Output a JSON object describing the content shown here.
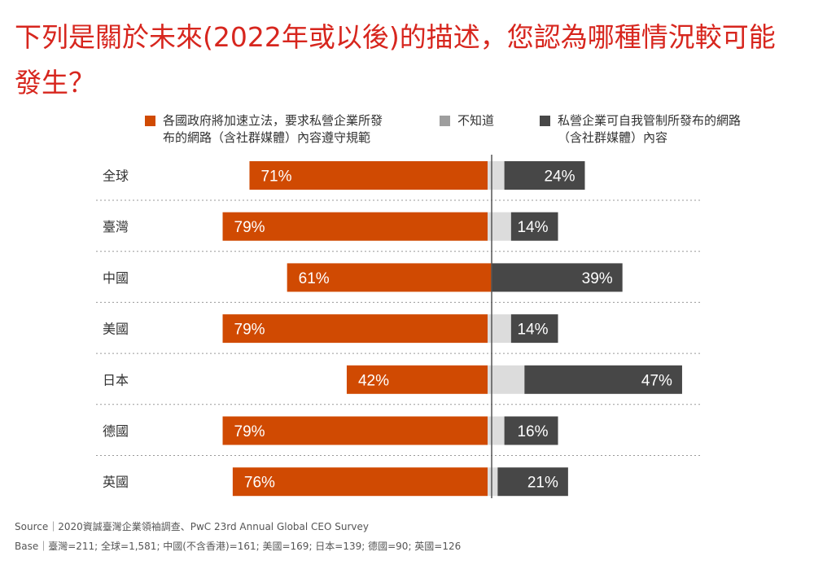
{
  "title": "下列是關於未來(2022年或以後)的描述，您認為哪種情況較可能發生？",
  "legend": [
    {
      "label": "各國政府將加速立法，要求私營企業所發\n布的網路（含社群媒體）內容遵守規範",
      "color": "#d04a02"
    },
    {
      "label": "不知道",
      "color": "#9e9e9e"
    },
    {
      "label": "私營企業可自我管制所發布的網路\n（含社群媒體）內容",
      "color": "#474747"
    }
  ],
  "chart_data": {
    "type": "bar",
    "orientation": "horizontal-diverging",
    "categories": [
      "全球",
      "臺灣",
      "中國",
      "美國",
      "日本",
      "德國",
      "英國"
    ],
    "series": [
      {
        "name": "各國政府將加速立法，要求私營企業所發布的網路（含社群媒體）內容遵守規範",
        "values": [
          71,
          79,
          61,
          79,
          42,
          79,
          76
        ],
        "color": "#d04a02"
      },
      {
        "name": "不知道",
        "values": [
          5,
          7,
          0,
          7,
          11,
          5,
          3
        ],
        "color": "#dcdcdc"
      },
      {
        "name": "私營企業可自我管制所發布的網路（含社群媒體）內容",
        "values": [
          24,
          14,
          39,
          14,
          47,
          16,
          21
        ],
        "color": "#474747"
      }
    ],
    "value_labels": {
      "left": [
        "71%",
        "79%",
        "61%",
        "79%",
        "42%",
        "79%",
        "76%"
      ],
      "right": [
        "24%",
        "14%",
        "39%",
        "14%",
        "47%",
        "16%",
        "21%"
      ]
    },
    "label_color": "#ffffff",
    "divider_color": "#555555",
    "gridline_style": "dotted"
  },
  "footer": {
    "source": "Source｜2020資誠臺灣企業領袖調查、PwC 23rd Annual Global CEO Survey",
    "base": "Base｜臺灣=211; 全球=1,581; 中國(不含香港)=161; 美國=169; 日本=139; 德國=90; 英國=126"
  }
}
